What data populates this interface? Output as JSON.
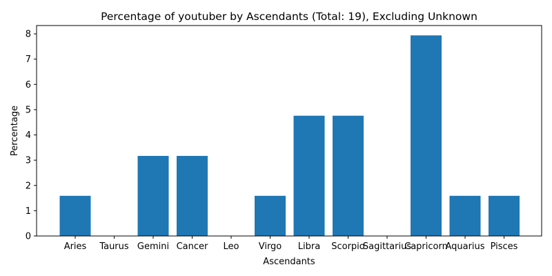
{
  "chart_data": {
    "type": "bar",
    "title": "Percentage of youtuber by Ascendants (Total: 19), Excluding Unknown",
    "xlabel": "Ascendants",
    "ylabel": "Percentage",
    "categories": [
      "Aries",
      "Taurus",
      "Gemini",
      "Cancer",
      "Leo",
      "Virgo",
      "Libra",
      "Scorpio",
      "Sagittarius",
      "Capricorn",
      "Aquarius",
      "Pisces"
    ],
    "values": [
      1.59,
      0,
      3.17,
      3.17,
      0,
      1.59,
      4.76,
      4.76,
      0,
      7.94,
      1.59,
      1.59
    ],
    "ylim": [
      0,
      8.33
    ],
    "yticks": [
      "0",
      "1",
      "2",
      "3",
      "4",
      "5",
      "6",
      "7",
      "8"
    ],
    "grid": false,
    "bar_color": "#1f77b4"
  }
}
